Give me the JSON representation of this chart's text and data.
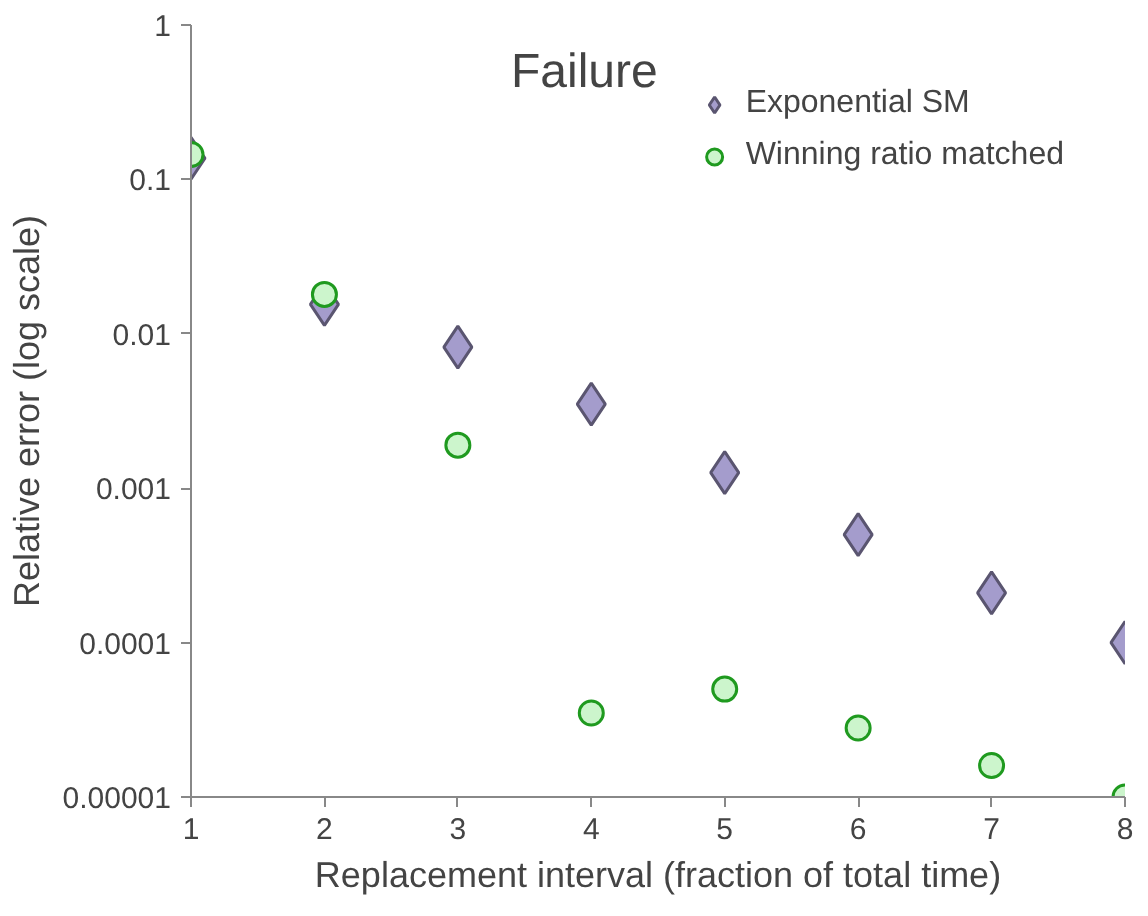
{
  "chart_data": {
    "type": "scatter",
    "title": "Failure",
    "xlabel": "Replacement interval (fraction of total time)",
    "ylabel": "Relative error (log scale)",
    "x": [
      1,
      2,
      3,
      4,
      5,
      6,
      7,
      8
    ],
    "series": [
      {
        "name": "Exponential SM",
        "color": "#a49ccc",
        "marker": "diamond",
        "values": [
          0.137,
          0.0155,
          0.0082,
          0.0035,
          0.00126,
          0.0005,
          0.00021,
          0.0001
        ]
      },
      {
        "name": "Winning ratio matched",
        "color": "#ccf5cc",
        "marker": "circle",
        "values": [
          0.145,
          0.018,
          0.0019,
          3.5e-05,
          5e-05,
          2.8e-05,
          1.6e-05,
          1e-05
        ]
      }
    ],
    "log": "y",
    "xlim": [
      1,
      8
    ],
    "ylim": [
      1e-05,
      1
    ],
    "xticks": [
      1,
      2,
      3,
      4,
      5,
      6,
      7,
      8
    ],
    "yticks": [
      {
        "value": 1e-05,
        "label": "0.00001"
      },
      {
        "value": 0.0001,
        "label": "0.0001"
      },
      {
        "value": 0.001,
        "label": "0.001"
      },
      {
        "value": 0.01,
        "label": "0.01"
      },
      {
        "value": 0.1,
        "label": "0.1"
      },
      {
        "value": 1,
        "label": "1"
      }
    ],
    "grid": false,
    "legend": "top right"
  }
}
